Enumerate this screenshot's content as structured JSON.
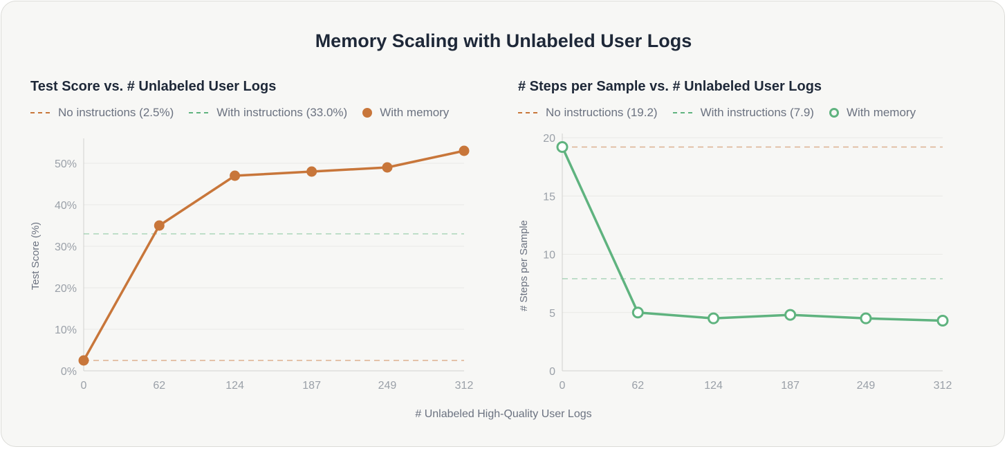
{
  "title": "Memory Scaling with Unlabeled User Logs",
  "xlabel": "# Unlabeled High-Quality User Logs",
  "colors": {
    "no_instructions": "#c8763a",
    "with_instructions": "#5fb37f",
    "memory_left": "#c8763a",
    "memory_right": "#5fb37f"
  },
  "chart_data": [
    {
      "type": "line",
      "title": "Test Score vs. # Unlabeled User Logs",
      "ylabel": "Test Score (%)",
      "x": [
        0,
        62,
        124,
        187,
        249,
        312
      ],
      "x_ticks": [
        "0",
        "62",
        "124",
        "187",
        "249",
        "312"
      ],
      "y_ticks": [
        "0%",
        "10%",
        "20%",
        "30%",
        "40%",
        "50%"
      ],
      "y_tick_values": [
        0,
        10,
        20,
        30,
        40,
        50
      ],
      "ylim": [
        0,
        55
      ],
      "grid": true,
      "legend": {
        "no_instructions": "No instructions (2.5%)",
        "with_instructions": "With instructions (33.0%)",
        "memory": "With memory"
      },
      "reference_lines": {
        "no_instructions": 2.5,
        "with_instructions": 33.0
      },
      "series": [
        {
          "name": "With memory",
          "marker": "filled",
          "values": [
            2.5,
            35,
            47,
            48,
            49,
            53
          ]
        }
      ]
    },
    {
      "type": "line",
      "title": "# Steps per Sample vs. # Unlabeled User Logs",
      "ylabel": "# Steps per Sample",
      "x": [
        0,
        62,
        124,
        187,
        249,
        312
      ],
      "x_ticks": [
        "0",
        "62",
        "124",
        "187",
        "249",
        "312"
      ],
      "y_ticks": [
        "0",
        "5",
        "10",
        "15",
        "20"
      ],
      "y_tick_values": [
        0,
        5,
        10,
        15,
        20
      ],
      "ylim": [
        0,
        20
      ],
      "grid": true,
      "legend": {
        "no_instructions": "No instructions (19.2)",
        "with_instructions": "With instructions (7.9)",
        "memory": "With memory"
      },
      "reference_lines": {
        "no_instructions": 19.2,
        "with_instructions": 7.9
      },
      "series": [
        {
          "name": "With memory",
          "marker": "hollow",
          "values": [
            19.2,
            5.0,
            4.5,
            4.8,
            4.5,
            4.3
          ]
        }
      ]
    }
  ]
}
